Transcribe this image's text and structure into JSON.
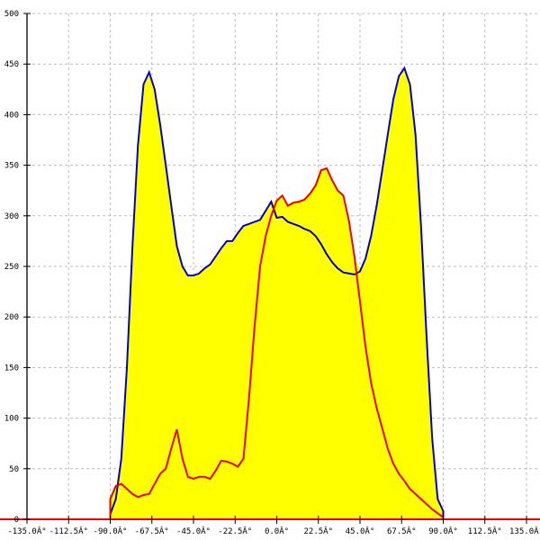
{
  "chart_data": {
    "type": "area",
    "title": "",
    "xlabel": "",
    "ylabel": "",
    "xlim": [
      -135,
      135
    ],
    "ylim": [
      0,
      500
    ],
    "grid": true,
    "x_ticks": [
      -135,
      -112.5,
      -90,
      -67.5,
      -45,
      -22.5,
      0,
      22.5,
      45,
      67.5,
      90,
      112.5,
      135
    ],
    "x_tick_labels": [
      "-135.0Â°",
      "-112.5Â°",
      "-90.0Â°",
      "-67.5Â°",
      "-45.0Â°",
      "-22.5Â°",
      "0.0Â°",
      "22.5Â°",
      "45.0Â°",
      "67.5Â°",
      "90.0Â°",
      "112.5Â°",
      "135.0Â°"
    ],
    "y_ticks": [
      0,
      50,
      100,
      150,
      200,
      250,
      300,
      350,
      400,
      450,
      500
    ],
    "y_tick_labels": [
      "0",
      "50",
      "100",
      "150",
      "200",
      "250",
      "300",
      "350",
      "400",
      "450",
      "500"
    ],
    "colors": {
      "fill": "#ffff00",
      "blue_line": "#0000cc",
      "red_line": "#ee0000",
      "grid": "#bbbbbb"
    },
    "x": [
      -90,
      -87,
      -84,
      -81,
      -78,
      -75,
      -72,
      -69,
      -66,
      -63,
      -60,
      -57,
      -54,
      -51,
      -48,
      -45,
      -42,
      -39,
      -36,
      -33,
      -30,
      -27,
      -24,
      -21,
      -18,
      -15,
      -12,
      -9,
      -6,
      -3,
      0,
      3,
      6,
      9,
      12,
      15,
      18,
      21,
      24,
      27,
      30,
      33,
      36,
      39,
      42,
      45,
      48,
      51,
      54,
      57,
      60,
      63,
      66,
      69,
      72,
      75,
      78,
      81,
      84,
      87,
      90
    ],
    "series": [
      {
        "color": "#0000cc",
        "values": [
          5,
          20,
          60,
          150,
          270,
          370,
          430,
          442,
          425,
          390,
          350,
          310,
          270,
          250,
          241,
          241,
          243,
          248,
          252,
          260,
          268,
          275,
          275,
          283,
          290,
          292,
          294,
          296,
          305,
          314,
          298,
          299,
          294,
          292,
          290,
          287,
          285,
          280,
          272,
          262,
          254,
          248,
          244,
          243,
          242,
          245,
          258,
          280,
          310,
          345,
          380,
          415,
          438,
          446,
          430,
          380,
          290,
          180,
          80,
          20,
          8
        ]
      },
      {
        "color": "#ee0000",
        "values": [
          20,
          33,
          35,
          30,
          25,
          22,
          24,
          25,
          35,
          45,
          50,
          70,
          89,
          60,
          42,
          40,
          42,
          42,
          40,
          48,
          58,
          57,
          55,
          52,
          60,
          120,
          190,
          250,
          280,
          300,
          315,
          320,
          310,
          313,
          314,
          316,
          322,
          330,
          345,
          347,
          335,
          325,
          320,
          295,
          260,
          215,
          170,
          135,
          110,
          90,
          70,
          55,
          45,
          38,
          30,
          25,
          20,
          15,
          10,
          6,
          2
        ]
      }
    ]
  }
}
